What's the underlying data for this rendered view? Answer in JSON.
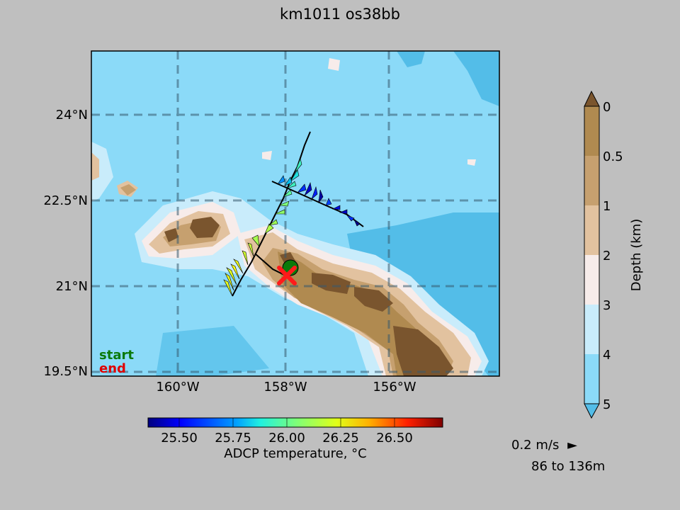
{
  "title": "km1011 os38bb",
  "map": {
    "lat_ticks": [
      "24°N",
      "22.5°N",
      "21°N",
      "19.5°N"
    ],
    "lon_ticks": [
      "160°W",
      "158°W",
      "156°W"
    ],
    "legend_start": "start",
    "legend_end": "end",
    "colors": {
      "ocean_deep": "#53bde8",
      "ocean": "#8bdaf8",
      "shelf_4": "#c9ecfb",
      "shelf_3": "#f7ecea",
      "land_2": "#e2c29f",
      "land_1": "#c6a06f",
      "land_05": "#b08a50",
      "land_0": "#7a552e",
      "start_marker": "#0a7a0a",
      "end_marker": "#ff1a1a"
    }
  },
  "temp_colorbar": {
    "ticks": [
      "25.50",
      "25.75",
      "26.00",
      "26.25",
      "26.50"
    ],
    "label": "ADCP temperature, °C"
  },
  "depth_colorbar": {
    "ticks": [
      "0",
      "0.5",
      "1",
      "2",
      "3",
      "4",
      "5"
    ],
    "label": "Depth (km)"
  },
  "scale": {
    "speed": "0.2 m/s",
    "arrow": "►",
    "range": "86 to 136m"
  }
}
